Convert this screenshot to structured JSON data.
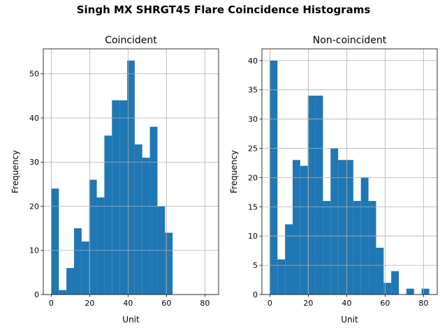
{
  "suptitle": "Singh MX SHRGT45 Flare Coincidence Histograms",
  "bar_color": "#1f77b4",
  "grid_color": "#b0b0b0",
  "chart_data": [
    {
      "type": "bar",
      "title": "Coincident",
      "xlabel": "Unit",
      "ylabel": "Frequency",
      "grid": true,
      "xlim": [
        -4.15,
        87.15
      ],
      "ylim": [
        0,
        55.65
      ],
      "xticks": [
        0,
        20,
        40,
        60,
        80
      ],
      "yticks": [
        0,
        10,
        20,
        30,
        40,
        50
      ],
      "bin_edges": [
        0,
        3.95,
        7.9,
        11.85,
        15.8,
        19.75,
        23.7,
        27.65,
        31.6,
        35.55,
        39.5,
        43.45,
        47.4,
        51.35,
        55.3,
        59.25,
        63.2,
        67.15,
        71.1,
        75.05,
        79.0,
        83.0
      ],
      "values": [
        24,
        1,
        6,
        15,
        12,
        26,
        22,
        36,
        44,
        44,
        53,
        34,
        31,
        38,
        20,
        14,
        0,
        0,
        0,
        0,
        0
      ]
    },
    {
      "type": "bar",
      "title": "Non-coincident",
      "xlabel": "Unit",
      "ylabel": "Frequency",
      "grid": true,
      "xlim": [
        -4.15,
        87.15
      ],
      "ylim": [
        0,
        42
      ],
      "xticks": [
        0,
        20,
        40,
        60,
        80
      ],
      "yticks": [
        0,
        5,
        10,
        15,
        20,
        25,
        30,
        35,
        40
      ],
      "bin_edges": [
        0,
        3.95,
        7.9,
        11.85,
        15.8,
        19.75,
        23.7,
        27.65,
        31.6,
        35.55,
        39.5,
        43.45,
        47.4,
        51.35,
        55.3,
        59.25,
        63.2,
        67.15,
        71.1,
        75.05,
        79.0,
        83.0
      ],
      "values": [
        40,
        6,
        12,
        23,
        22,
        34,
        34,
        16,
        25,
        23,
        23,
        16,
        20,
        16,
        8,
        2,
        4,
        0,
        1,
        0,
        1
      ]
    }
  ]
}
